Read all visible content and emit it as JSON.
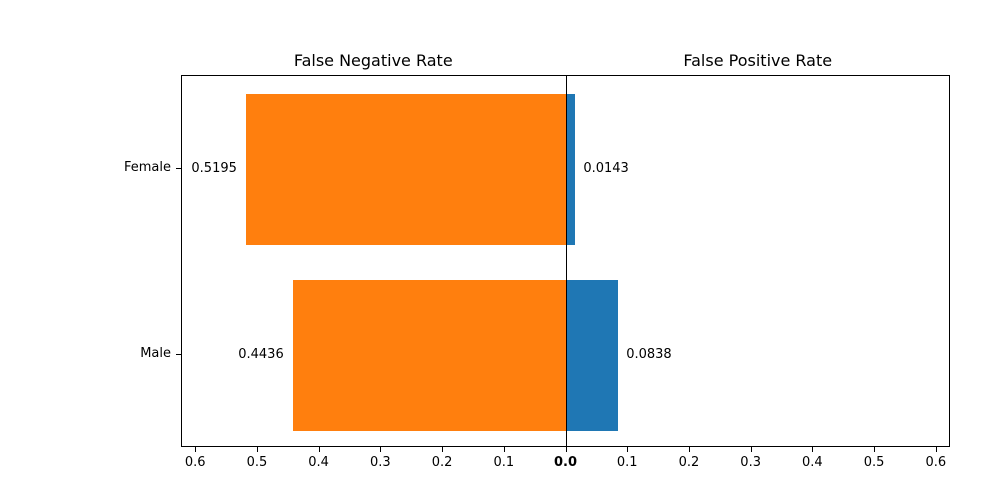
{
  "chart_data": {
    "type": "bar",
    "variant": "horizontal-diverging",
    "categories": [
      "Female",
      "Male"
    ],
    "series": [
      {
        "name": "False Negative Rate",
        "side": "left",
        "color": "#ff7f0e",
        "values": [
          0.5195,
          0.4436
        ],
        "value_labels": [
          "0.5195",
          "0.4436"
        ]
      },
      {
        "name": "False Positive Rate",
        "side": "right",
        "color": "#1f77b4",
        "values": [
          0.0143,
          0.0838
        ],
        "value_labels": [
          "0.0143",
          "0.0838"
        ]
      }
    ],
    "titles": {
      "left": "False Negative Rate",
      "right": "False Positive Rate"
    },
    "x_ticks_left": [
      "0.6",
      "0.5",
      "0.4",
      "0.3",
      "0.2",
      "0.1"
    ],
    "x_tick_center": "0.0",
    "x_ticks_right": [
      "0.1",
      "0.2",
      "0.3",
      "0.4",
      "0.5",
      "0.6"
    ],
    "xlim_abs": 0.623,
    "tick_step": 0.1,
    "grid": false,
    "legend": "none",
    "xlabel": "",
    "ylabel": ""
  },
  "colors": {
    "fnr_bar": "#ff7f0e",
    "fpr_bar": "#1f77b4",
    "axis": "#000000",
    "background": "#ffffff",
    "text": "#000000"
  }
}
